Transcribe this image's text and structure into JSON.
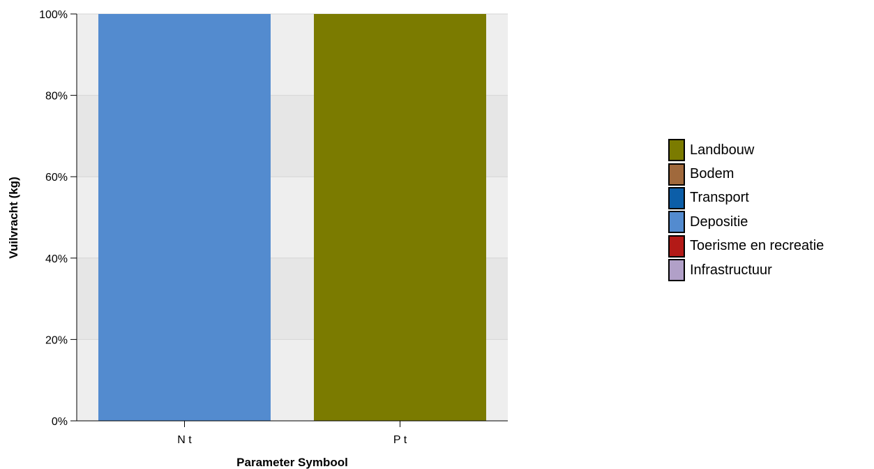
{
  "chart_data": {
    "type": "bar",
    "stacked": true,
    "categories": [
      "N t",
      "P t"
    ],
    "series": [
      {
        "name": "Landbouw",
        "color": "#7b7b00",
        "values": [
          0,
          100
        ]
      },
      {
        "name": "Bodem",
        "color": "#a0693c",
        "values": [
          0,
          0
        ]
      },
      {
        "name": "Transport",
        "color": "#0c5ea8",
        "values": [
          0,
          0
        ]
      },
      {
        "name": "Depositie",
        "color": "#538bcf",
        "values": [
          100,
          0
        ]
      },
      {
        "name": "Toerisme en recreatie",
        "color": "#b31a17",
        "values": [
          0,
          0
        ]
      },
      {
        "name": "Infrastructuur",
        "color": "#b1a0c8",
        "values": [
          0,
          0
        ]
      }
    ],
    "ylim": [
      0,
      100
    ],
    "yticks": [
      0,
      20,
      40,
      60,
      80,
      100
    ],
    "ytick_suffix": "%",
    "xlabel": "Parameter Symbool",
    "ylabel": "Vuilvracht (kg)",
    "grid": true,
    "legend_position": "right"
  }
}
